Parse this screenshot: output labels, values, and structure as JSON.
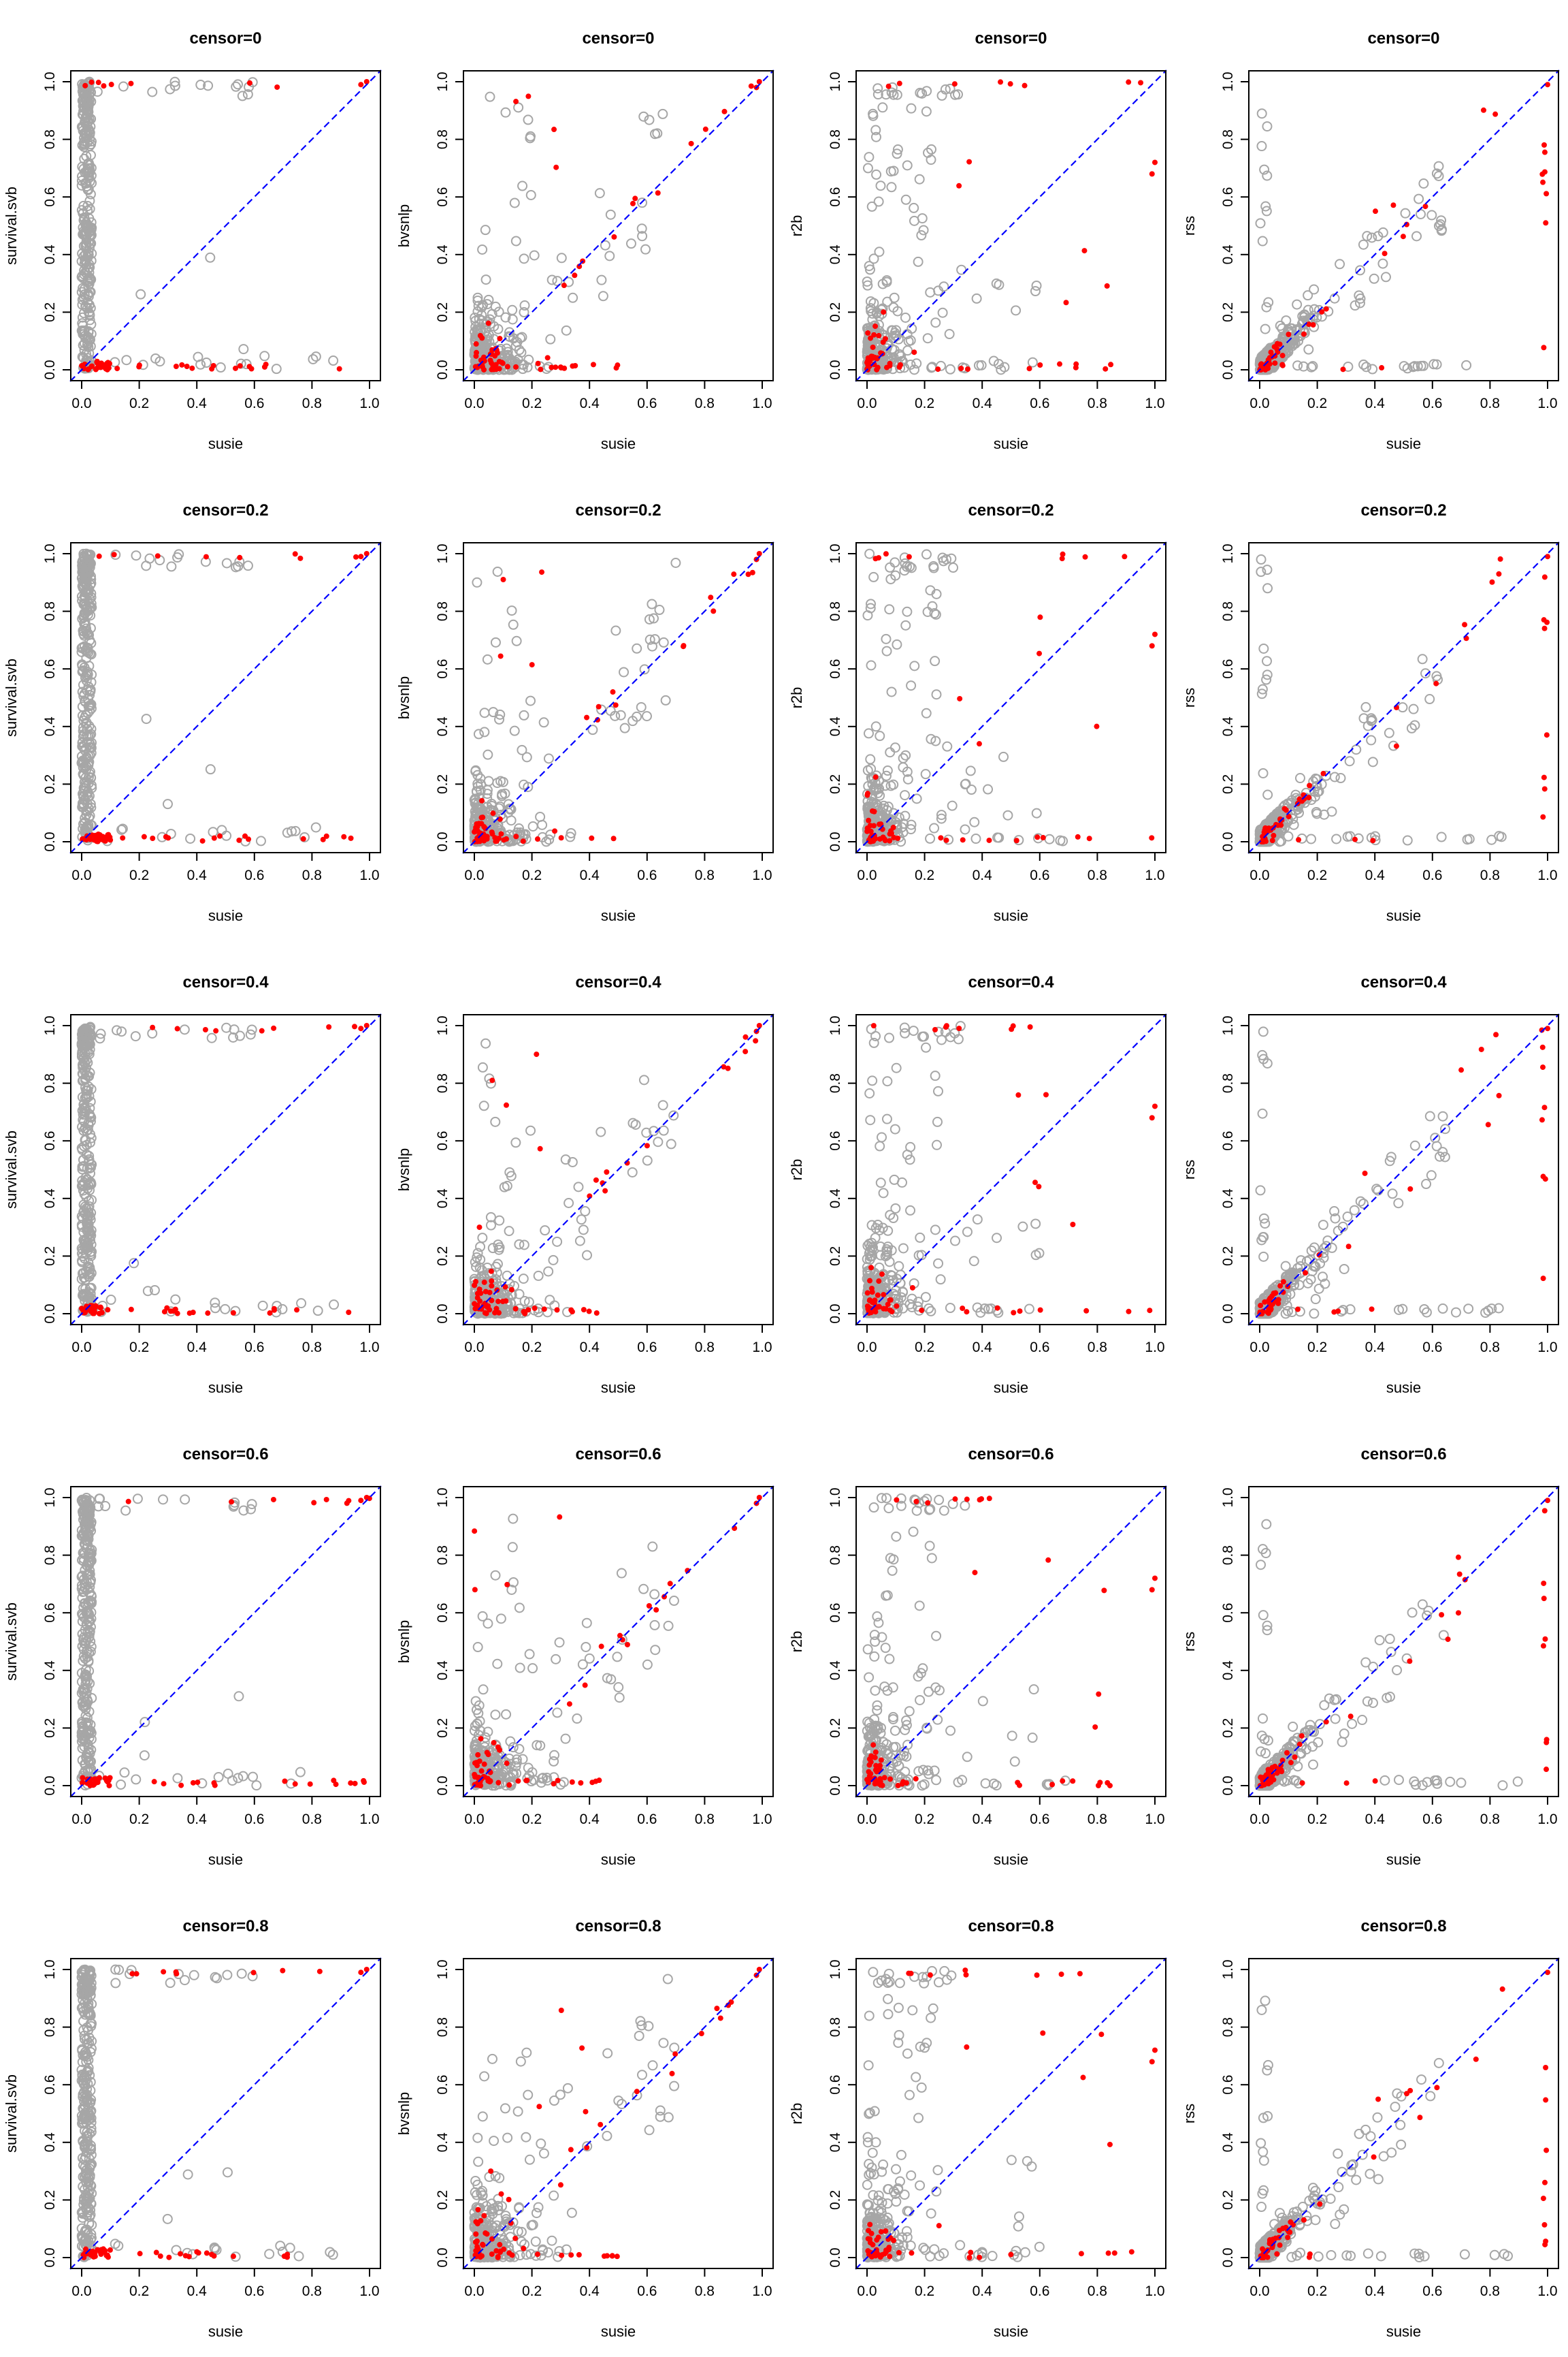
{
  "colors": {
    "background": "#ffffff",
    "axis": "#000000",
    "non_causal_points": "#a6a6a6",
    "causal_points": "#ff0000",
    "identity_line": "#0000ff"
  },
  "chart_data": {
    "type": "scatter",
    "layout_grid": {
      "rows": 5,
      "cols": 4
    },
    "shared": {
      "xlabel": "susie",
      "xlim": [
        0,
        1
      ],
      "ylim": [
        0,
        1
      ],
      "xticks": [
        "0.0",
        "0.2",
        "0.4",
        "0.6",
        "0.8",
        "1.0"
      ],
      "yticks": [
        "0.0",
        "0.2",
        "0.4",
        "0.6",
        "0.8",
        "1.0"
      ],
      "reference_line": "y = x (dashed blue)",
      "grid": false,
      "legend": "none"
    },
    "panels": [
      {
        "title": "censor=0",
        "ylabel": "survival.svb",
        "method": "survival.svb",
        "censor": 0
      },
      {
        "title": "censor=0",
        "ylabel": "bvsnlp",
        "method": "bvsnlp",
        "censor": 0
      },
      {
        "title": "censor=0",
        "ylabel": "r2b",
        "method": "r2b",
        "censor": 0
      },
      {
        "title": "censor=0",
        "ylabel": "rss",
        "method": "rss",
        "censor": 0
      },
      {
        "title": "censor=0.2",
        "ylabel": "survival.svb",
        "method": "survival.svb",
        "censor": 0.2
      },
      {
        "title": "censor=0.2",
        "ylabel": "bvsnlp",
        "method": "bvsnlp",
        "censor": 0.2
      },
      {
        "title": "censor=0.2",
        "ylabel": "r2b",
        "method": "r2b",
        "censor": 0.2
      },
      {
        "title": "censor=0.2",
        "ylabel": "rss",
        "method": "rss",
        "censor": 0.2
      },
      {
        "title": "censor=0.4",
        "ylabel": "survival.svb",
        "method": "survival.svb",
        "censor": 0.4
      },
      {
        "title": "censor=0.4",
        "ylabel": "bvsnlp",
        "method": "bvsnlp",
        "censor": 0.4
      },
      {
        "title": "censor=0.4",
        "ylabel": "r2b",
        "method": "r2b",
        "censor": 0.4
      },
      {
        "title": "censor=0.4",
        "ylabel": "rss",
        "method": "rss",
        "censor": 0.4
      },
      {
        "title": "censor=0.6",
        "ylabel": "survival.svb",
        "method": "survival.svb",
        "censor": 0.6
      },
      {
        "title": "censor=0.6",
        "ylabel": "bvsnlp",
        "method": "bvsnlp",
        "censor": 0.6
      },
      {
        "title": "censor=0.6",
        "ylabel": "r2b",
        "method": "r2b",
        "censor": 0.6
      },
      {
        "title": "censor=0.6",
        "ylabel": "rss",
        "method": "rss",
        "censor": 0.6
      },
      {
        "title": "censor=0.8",
        "ylabel": "survival.svb",
        "method": "survival.svb",
        "censor": 0.8
      },
      {
        "title": "censor=0.8",
        "ylabel": "bvsnlp",
        "method": "bvsnlp",
        "censor": 0.8
      },
      {
        "title": "censor=0.8",
        "ylabel": "r2b",
        "method": "r2b",
        "censor": 0.8
      },
      {
        "title": "censor=0.8",
        "ylabel": "rss",
        "method": "rss",
        "censor": 0.8
      }
    ]
  }
}
